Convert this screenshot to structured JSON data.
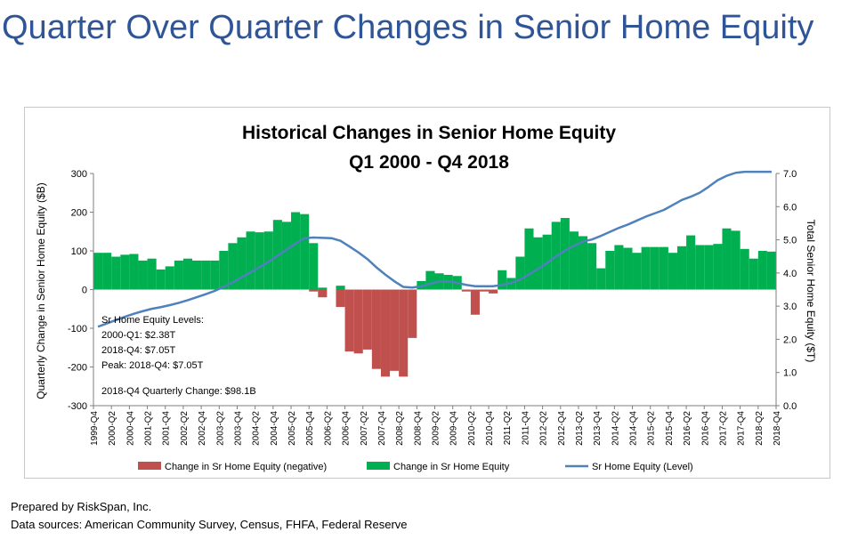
{
  "slide_title": "Quarter Over Quarter Changes in Senior Home Equity",
  "footer": {
    "prepared_by": "Prepared by RiskSpan, Inc.",
    "sources": "Data sources: American Community Survey, Census, FHFA, Federal Reserve"
  },
  "chart_data": {
    "type": "bar+line",
    "title": "Historical Changes in Senior Home Equity",
    "subtitle": "Q1 2000 - Q4 2018",
    "ylabel": "Quarterly Change in Senior Home Equity ($B)",
    "y2label": "Total Senior Home Equity ($T)",
    "ylim": [
      -300,
      300
    ],
    "y2lim": [
      0,
      7
    ],
    "yticks": [
      300,
      200,
      100,
      0,
      -100,
      -200,
      -300
    ],
    "y2ticks": [
      "7.0",
      "6.0",
      "5.0",
      "4.0",
      "3.0",
      "2.0",
      "1.0",
      "0.0"
    ],
    "xtick_labels": [
      "1999-Q4",
      "2000-Q2",
      "2000-Q4",
      "2001-Q2",
      "2001-Q4",
      "2002-Q2",
      "2002-Q4",
      "2003-Q2",
      "2003-Q4",
      "2004-Q2",
      "2004-Q4",
      "2005-Q2",
      "2005-Q4",
      "2006-Q2",
      "2006-Q4",
      "2007-Q2",
      "2007-Q4",
      "2008-Q2",
      "2008-Q4",
      "2009-Q2",
      "2009-Q4",
      "2010-Q2",
      "2010-Q4",
      "2011-Q2",
      "2011-Q4",
      "2012-Q2",
      "2012-Q4",
      "2013-Q2",
      "2013-Q4",
      "2014-Q2",
      "2014-Q4",
      "2015-Q2",
      "2015-Q4",
      "2016-Q2",
      "2016-Q4",
      "2017-Q2",
      "2017-Q4",
      "2018-Q2",
      "2018-Q4"
    ],
    "quarters": [
      "2000-Q1",
      "2000-Q2",
      "2000-Q3",
      "2000-Q4",
      "2001-Q1",
      "2001-Q2",
      "2001-Q3",
      "2001-Q4",
      "2002-Q1",
      "2002-Q2",
      "2002-Q3",
      "2002-Q4",
      "2003-Q1",
      "2003-Q2",
      "2003-Q3",
      "2003-Q4",
      "2004-Q1",
      "2004-Q2",
      "2004-Q3",
      "2004-Q4",
      "2005-Q1",
      "2005-Q2",
      "2005-Q3",
      "2005-Q4",
      "2006-Q1",
      "2006-Q2",
      "2006-Q3",
      "2006-Q4",
      "2007-Q1",
      "2007-Q2",
      "2007-Q3",
      "2007-Q4",
      "2008-Q1",
      "2008-Q2",
      "2008-Q3",
      "2008-Q4",
      "2009-Q1",
      "2009-Q2",
      "2009-Q3",
      "2009-Q4",
      "2010-Q1",
      "2010-Q2",
      "2010-Q3",
      "2010-Q4",
      "2011-Q1",
      "2011-Q2",
      "2011-Q3",
      "2011-Q4",
      "2012-Q1",
      "2012-Q2",
      "2012-Q3",
      "2012-Q4",
      "2013-Q1",
      "2013-Q2",
      "2013-Q3",
      "2013-Q4",
      "2014-Q1",
      "2014-Q2",
      "2014-Q3",
      "2014-Q4",
      "2015-Q1",
      "2015-Q2",
      "2015-Q3",
      "2015-Q4",
      "2016-Q1",
      "2016-Q2",
      "2016-Q3",
      "2016-Q4",
      "2017-Q1",
      "2017-Q2",
      "2017-Q3",
      "2017-Q4",
      "2018-Q1",
      "2018-Q2",
      "2018-Q3",
      "2018-Q4"
    ],
    "series": [
      {
        "name": "Change in Sr Home Equity (negative)",
        "kind": "bar",
        "color": "#c0504d",
        "values": [
          null,
          null,
          null,
          null,
          null,
          null,
          null,
          null,
          null,
          null,
          null,
          null,
          null,
          null,
          null,
          null,
          null,
          null,
          null,
          null,
          null,
          null,
          null,
          null,
          -5,
          -20,
          null,
          -45,
          -160,
          -165,
          -155,
          -205,
          -225,
          -210,
          -225,
          -125,
          null,
          null,
          null,
          null,
          null,
          -5,
          -65,
          -5,
          -10,
          null,
          null,
          null,
          null,
          null,
          null,
          null,
          null,
          null,
          null,
          null,
          null,
          null,
          null,
          null,
          null,
          null,
          null,
          null,
          null,
          null,
          null,
          null,
          null,
          null,
          null,
          null,
          null,
          null,
          null,
          null
        ]
      },
      {
        "name": "Change in Sr Home Equity",
        "kind": "bar",
        "color": "#00b050",
        "values": [
          95,
          95,
          85,
          90,
          92,
          75,
          80,
          52,
          60,
          75,
          80,
          75,
          75,
          75,
          100,
          120,
          135,
          150,
          148,
          150,
          180,
          175,
          200,
          195,
          120,
          5,
          null,
          10,
          null,
          null,
          null,
          null,
          null,
          null,
          null,
          null,
          22,
          48,
          42,
          38,
          35,
          null,
          null,
          null,
          null,
          50,
          30,
          85,
          158,
          135,
          142,
          175,
          185,
          150,
          138,
          120,
          55,
          100,
          115,
          108,
          95,
          110,
          110,
          110,
          95,
          112,
          140,
          115,
          115,
          118,
          158,
          152,
          105,
          80,
          100,
          98.1
        ]
      },
      {
        "name": "Sr Home Equity (Level)",
        "kind": "line",
        "color": "#4f81bd",
        "values": [
          2.38,
          2.48,
          2.58,
          2.68,
          2.77,
          2.85,
          2.92,
          2.97,
          3.03,
          3.1,
          3.18,
          3.27,
          3.36,
          3.46,
          3.58,
          3.72,
          3.87,
          4.02,
          4.18,
          4.34,
          4.52,
          4.7,
          4.89,
          5.05,
          5.07,
          5.06,
          5.05,
          4.97,
          4.8,
          4.62,
          4.42,
          4.17,
          3.95,
          3.75,
          3.58,
          3.56,
          3.6,
          3.68,
          3.74,
          3.75,
          3.7,
          3.64,
          3.6,
          3.6,
          3.6,
          3.64,
          3.7,
          3.8,
          3.96,
          4.13,
          4.3,
          4.5,
          4.68,
          4.82,
          4.95,
          5.01,
          5.12,
          5.24,
          5.36,
          5.46,
          5.58,
          5.7,
          5.8,
          5.9,
          6.05,
          6.2,
          6.3,
          6.42,
          6.6,
          6.8,
          6.93,
          7.02,
          7.05,
          7.05,
          7.05,
          7.05
        ]
      }
    ],
    "annotations": [
      "Sr Home Equity Levels:",
      "2000-Q1: $2.38T",
      "2018-Q4: $7.05T",
      "Peak: 2018-Q4: $7.05T",
      "2018-Q4 Quarterly Change: $98.1B"
    ],
    "legend_position": "bottom",
    "grid": false
  }
}
